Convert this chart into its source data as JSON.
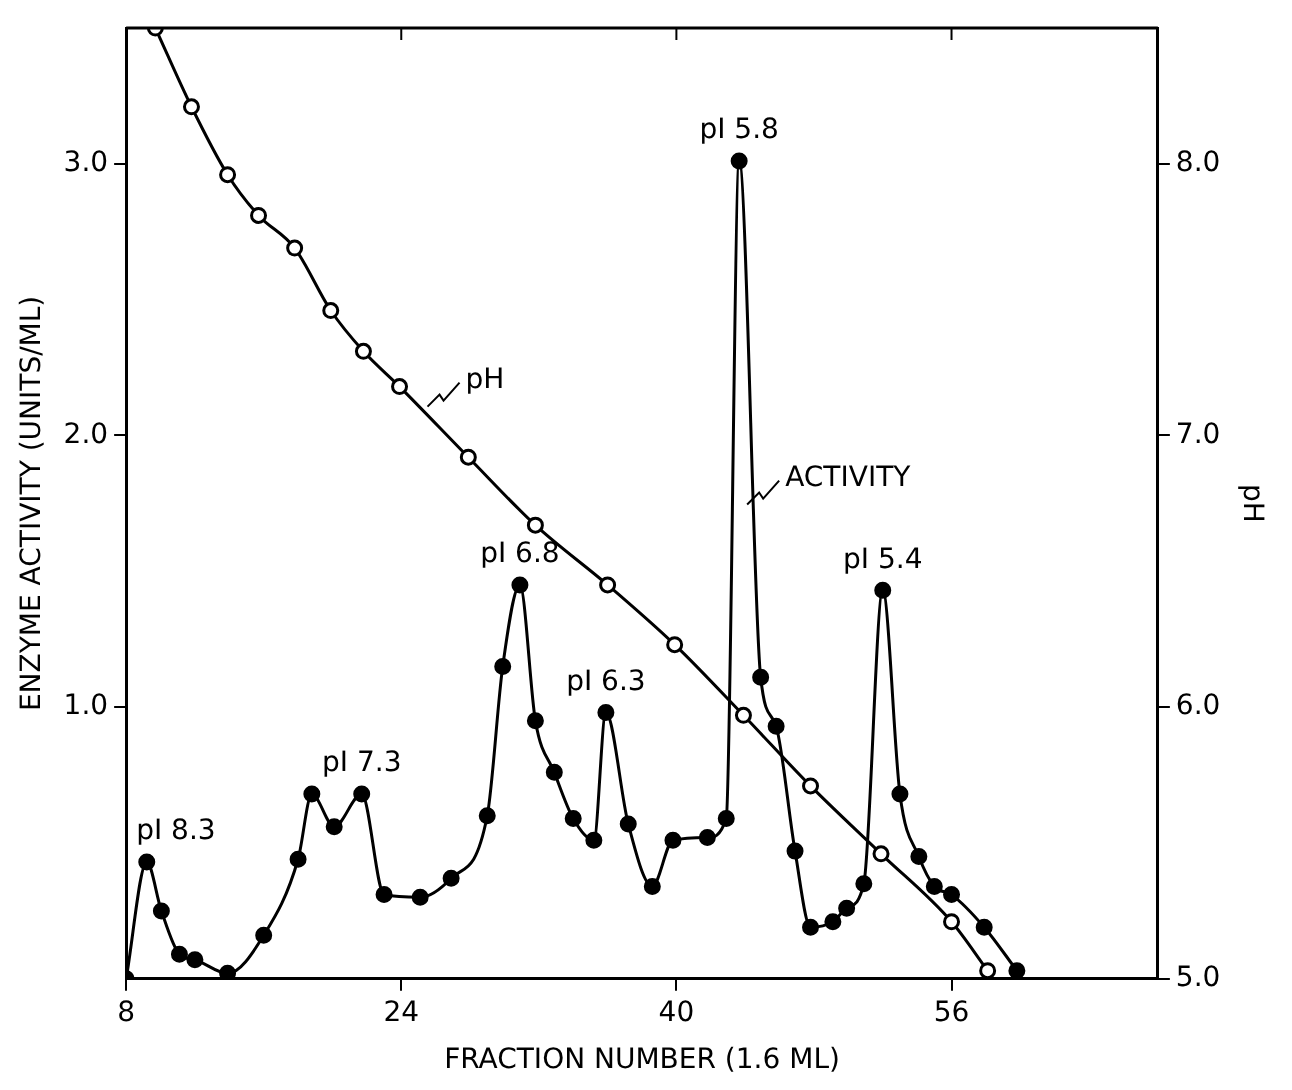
{
  "chart_data": {
    "type": "line",
    "xlabel": "FRACTION NUMBER (1.6 ML)",
    "ylabel": "ENZYME ACTIVITY (UNITS/ML)",
    "y2label": "pH",
    "xlim": [
      8,
      68
    ],
    "xticks": [
      8,
      24,
      40,
      56
    ],
    "ylim": [
      0,
      3.5
    ],
    "yticks": [
      {
        "value": 1,
        "label": "1.0"
      },
      {
        "value": 2,
        "label": "2.0"
      },
      {
        "value": 3,
        "label": "3.0"
      }
    ],
    "y2lim": [
      5,
      8.5
    ],
    "y2ticks": [
      {
        "value": 5,
        "label": "5.0"
      },
      {
        "value": 6,
        "label": "6.0"
      },
      {
        "value": 7,
        "label": "7.0"
      },
      {
        "value": 8,
        "label": "8.0"
      }
    ],
    "grid": false,
    "legend": "center",
    "marker": "circle",
    "line_style": "solid",
    "series": [
      {
        "name": "ACTIVITY",
        "color": "#000000",
        "x": [
          8,
          9.2,
          10.05,
          11.1,
          12.0,
          13.9,
          16.0,
          18.0,
          18.8,
          20.1,
          21.7,
          23.0,
          25.1,
          26.9,
          29.0,
          29.9,
          30.9,
          31.8,
          32.9,
          34.0,
          35.2,
          35.9,
          37.2,
          38.6,
          39.8,
          41.8,
          42.9,
          43.65,
          44.9,
          45.8,
          46.9,
          47.8,
          49.1,
          49.9,
          50.9,
          52.0,
          53.0,
          54.1,
          55.0,
          56.0,
          57.9,
          59.8
        ],
        "values": [
          0,
          0.43,
          0.25,
          0.09,
          0.07,
          0.02,
          0.16,
          0.44,
          0.68,
          0.56,
          0.68,
          0.31,
          0.3,
          0.37,
          0.6,
          1.15,
          1.45,
          0.95,
          0.76,
          0.59,
          0.51,
          0.98,
          0.57,
          0.34,
          0.51,
          0.52,
          0.59,
          3.01,
          1.11,
          0.93,
          0.47,
          0.19,
          0.21,
          0.26,
          0.35,
          1.43,
          0.68,
          0.45,
          0.34,
          0.31,
          0.19,
          0.03
        ]
      },
      {
        "name": "pH",
        "color": "#000000",
        "axis": "y2",
        "x": [
          9.7,
          11.8,
          13.9,
          15.7,
          17.8,
          19.9,
          21.8,
          23.9,
          27.9,
          31.8,
          36.0,
          39.9,
          43.9,
          47.8,
          51.9,
          56.0,
          58.1
        ],
        "values": [
          8.5,
          8.21,
          7.96,
          7.81,
          7.69,
          7.46,
          7.31,
          7.18,
          6.92,
          6.67,
          6.45,
          6.23,
          5.97,
          5.71,
          5.46,
          5.21,
          5.03
        ]
      }
    ],
    "annotations": [
      {
        "text": "pI 8.3",
        "x": 9.2,
        "y": 0.43
      },
      {
        "text": "pI 7.3",
        "x": 21.7,
        "y": 0.68
      },
      {
        "text": "pI 6.8",
        "x": 30.9,
        "y": 1.45
      },
      {
        "text": "pI 6.3",
        "x": 35.9,
        "y": 0.98
      },
      {
        "text": "pI 5.8",
        "x": 43.65,
        "y": 3.01
      },
      {
        "text": "pI 5.4",
        "x": 52.0,
        "y": 1.43
      }
    ]
  }
}
